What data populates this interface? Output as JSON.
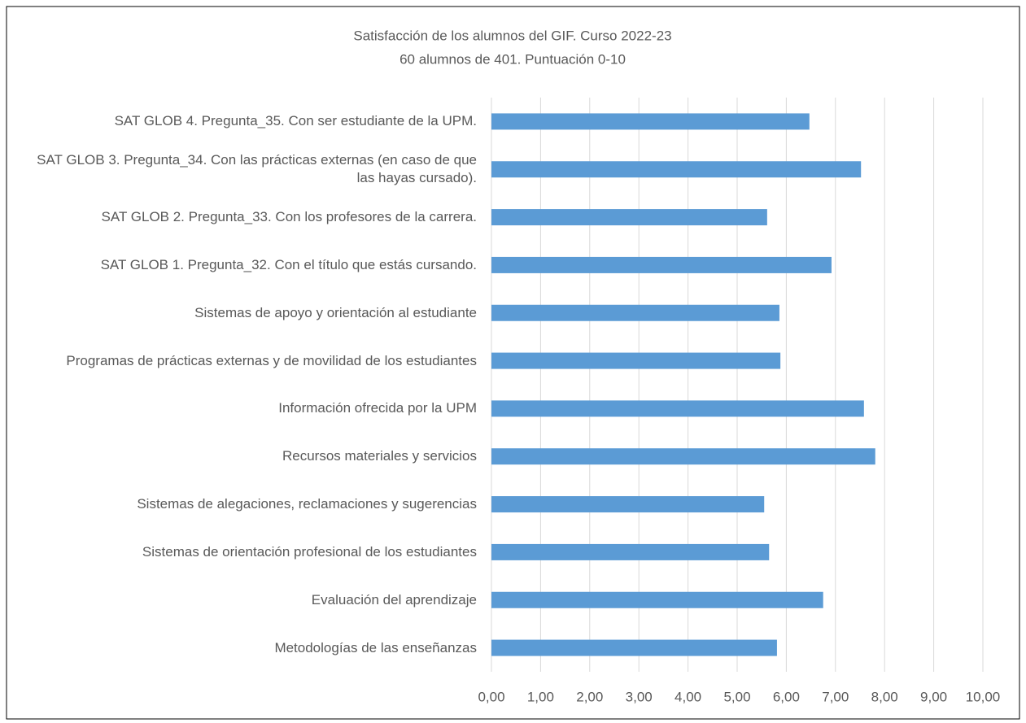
{
  "chart_data": {
    "type": "bar",
    "orientation": "horizontal",
    "title": "Satisfacción de los alumnos del GIF. Curso 2022-23",
    "subtitle": "60 alumnos de 401. Puntuación 0-10",
    "categories": [
      "SAT GLOB 4. Pregunta_35. Con ser estudiante de la UPM.",
      "SAT GLOB 3. Pregunta_34. Con las prácticas externas (en caso de que las hayas cursado).",
      "SAT GLOB 2. Pregunta_33. Con los profesores de la carrera.",
      "SAT GLOB 1. Pregunta_32. Con el título que estás cursando.",
      "Sistemas de apoyo y orientación al estudiante",
      "Programas de prácticas externas y de movilidad de los estudiantes",
      "Información ofrecida por la UPM",
      "Recursos materiales y servicios",
      "Sistemas de alegaciones, reclamaciones y sugerencias",
      "Sistemas de orientación profesional de los estudiantes",
      "Evaluación del aprendizaje",
      "Metodologías de las enseñanzas"
    ],
    "values": [
      6.47,
      7.52,
      5.61,
      6.92,
      5.86,
      5.88,
      7.58,
      7.81,
      5.55,
      5.65,
      6.75,
      5.81
    ],
    "color": "#5b9bd5",
    "xlim": [
      0,
      10
    ],
    "xticks": [
      {
        "value": 0,
        "label": "0,00"
      },
      {
        "value": 1,
        "label": "1,00"
      },
      {
        "value": 2,
        "label": "2,00"
      },
      {
        "value": 3,
        "label": "3,00"
      },
      {
        "value": 4,
        "label": "4,00"
      },
      {
        "value": 5,
        "label": "5,00"
      },
      {
        "value": 6,
        "label": "6,00"
      },
      {
        "value": 7,
        "label": "7,00"
      },
      {
        "value": 8,
        "label": "8,00"
      },
      {
        "value": 9,
        "label": "9,00"
      },
      {
        "value": 10,
        "label": "10,00"
      }
    ],
    "grid": true
  }
}
